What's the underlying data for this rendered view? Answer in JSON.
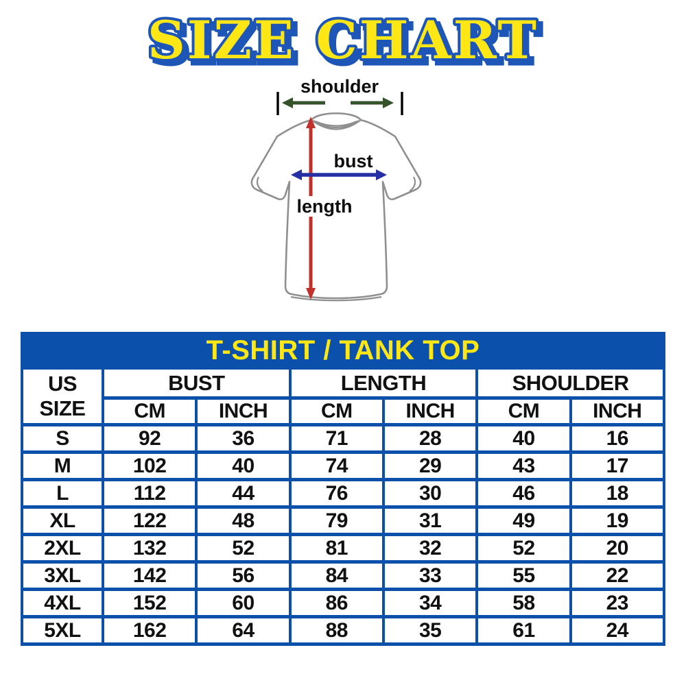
{
  "title": "SIZE CHART",
  "colors": {
    "table_blue": "#0B51AC",
    "accent_yellow": "#FFE715",
    "title_outline_blue": "#1E56B8",
    "shoulder_arrow_green": "#35522B",
    "length_arrow_red": "#C2302B",
    "bust_arrow_navy": "#2530A5",
    "shirt_outline_gray": "#8F8F8F"
  },
  "diagram": {
    "shoulder_label": "shoulder",
    "bust_label": "bust",
    "length_label": "length"
  },
  "table": {
    "banner": "T-SHIRT / TANK TOP",
    "corner_header": "US SIZE",
    "groups": [
      {
        "label": "BUST"
      },
      {
        "label": "LENGTH"
      },
      {
        "label": "SHOULDER"
      }
    ],
    "unit_headers": [
      "CM",
      "INCH",
      "CM",
      "INCH",
      "CM",
      "INCH"
    ],
    "rows": [
      {
        "size": "S",
        "values": [
          "92",
          "36",
          "71",
          "28",
          "40",
          "16"
        ]
      },
      {
        "size": "M",
        "values": [
          "102",
          "40",
          "74",
          "29",
          "43",
          "17"
        ]
      },
      {
        "size": "L",
        "values": [
          "112",
          "44",
          "76",
          "30",
          "46",
          "18"
        ]
      },
      {
        "size": "XL",
        "values": [
          "122",
          "48",
          "79",
          "31",
          "49",
          "19"
        ]
      },
      {
        "size": "2XL",
        "values": [
          "132",
          "52",
          "81",
          "32",
          "52",
          "20"
        ]
      },
      {
        "size": "3XL",
        "values": [
          "142",
          "56",
          "84",
          "33",
          "55",
          "22"
        ]
      },
      {
        "size": "4XL",
        "values": [
          "152",
          "60",
          "86",
          "34",
          "58",
          "23"
        ]
      },
      {
        "size": "5XL",
        "values": [
          "162",
          "64",
          "88",
          "35",
          "61",
          "24"
        ]
      }
    ]
  },
  "chart_data": {
    "type": "table",
    "title": "T-SHIRT / TANK TOP",
    "columns": [
      "US SIZE",
      "BUST CM",
      "BUST INCH",
      "LENGTH CM",
      "LENGTH INCH",
      "SHOULDER CM",
      "SHOULDER INCH"
    ],
    "rows": [
      [
        "S",
        92,
        36,
        71,
        28,
        40,
        16
      ],
      [
        "M",
        102,
        40,
        74,
        29,
        43,
        17
      ],
      [
        "L",
        112,
        44,
        76,
        30,
        46,
        18
      ],
      [
        "XL",
        122,
        48,
        79,
        31,
        49,
        19
      ],
      [
        "2XL",
        132,
        52,
        81,
        32,
        52,
        20
      ],
      [
        "3XL",
        142,
        56,
        84,
        33,
        55,
        22
      ],
      [
        "4XL",
        152,
        60,
        86,
        34,
        58,
        23
      ],
      [
        "5XL",
        162,
        64,
        88,
        35,
        61,
        24
      ]
    ]
  }
}
